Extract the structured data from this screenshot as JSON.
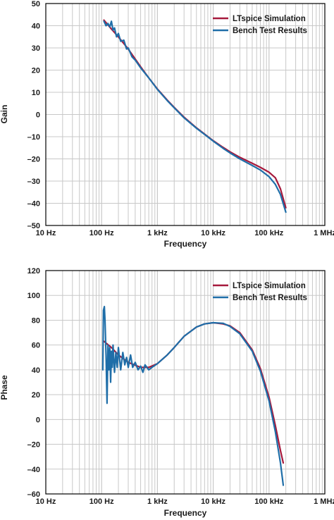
{
  "colors": {
    "ltspice": "#a6193c",
    "bench": "#1f6ea8",
    "grid": "#c8c8c8",
    "axis": "#000000",
    "text": "#1a1a1a"
  },
  "chart_data": [
    {
      "type": "line",
      "xlabel": "Frequency",
      "ylabel": "Gain",
      "x_scale": "log",
      "xlim": [
        10,
        1000000
      ],
      "ylim": [
        -50,
        50
      ],
      "x_ticks": [
        {
          "value": 10,
          "label": "10 Hz"
        },
        {
          "value": 100,
          "label": "100 Hz"
        },
        {
          "value": 1000,
          "label": "1 kHz"
        },
        {
          "value": 10000,
          "label": "10 kHz"
        },
        {
          "value": 100000,
          "label": "100 kHz"
        },
        {
          "value": 1000000,
          "label": "1 MHz"
        }
      ],
      "y_ticks": [
        50,
        40,
        30,
        20,
        10,
        0,
        -10,
        -20,
        -30,
        -40,
        -50
      ],
      "y_tick_labels": [
        "50",
        "40",
        "30",
        "20",
        "10",
        "0",
        "–10",
        "–20",
        "–30",
        "–40",
        "–50"
      ],
      "grid": true,
      "legend_position": "top-right",
      "series": [
        {
          "name": "LTspice Simulation",
          "color_key": "ltspice",
          "x": [
            110,
            150,
            200,
            300,
            500,
            700,
            1000,
            1500,
            2000,
            3000,
            5000,
            7000,
            10000,
            15000,
            20000,
            30000,
            50000,
            70000,
            100000,
            130000,
            160000,
            200000
          ],
          "y": [
            42.5,
            38.5,
            35,
            29.5,
            21.5,
            16.5,
            11.5,
            6.5,
            3.2,
            -1.2,
            -6,
            -8.8,
            -11.8,
            -14.8,
            -16.8,
            -19.3,
            -22,
            -23.8,
            -26,
            -28.5,
            -33.5,
            -42
          ]
        },
        {
          "name": "Bench Test Results",
          "color_key": "bench",
          "x": [
            110,
            120,
            130,
            140,
            150,
            160,
            170,
            185,
            200,
            220,
            250,
            280,
            300,
            350,
            400,
            500,
            700,
            1000,
            1500,
            2000,
            3000,
            5000,
            7000,
            10000,
            15000,
            20000,
            30000,
            50000,
            70000,
            100000,
            130000,
            160000,
            200000
          ],
          "y": [
            42,
            40,
            41,
            39.5,
            42,
            38,
            39,
            35,
            36.5,
            33,
            33.5,
            29.5,
            30,
            26,
            24.5,
            21,
            16.5,
            11.3,
            6.3,
            3,
            -1.5,
            -6.2,
            -9,
            -12,
            -15.2,
            -17.3,
            -20,
            -23,
            -25,
            -28,
            -31.5,
            -36,
            -44
          ]
        }
      ]
    },
    {
      "type": "line",
      "xlabel": "Frequency",
      "ylabel": "Phase",
      "x_scale": "log",
      "xlim": [
        10,
        1000000
      ],
      "ylim": [
        -60,
        120
      ],
      "x_ticks": [
        {
          "value": 10,
          "label": "10 Hz"
        },
        {
          "value": 100,
          "label": "100 Hz"
        },
        {
          "value": 1000,
          "label": "1 kHz"
        },
        {
          "value": 10000,
          "label": "10 kHz"
        },
        {
          "value": 100000,
          "label": "100 kHz"
        },
        {
          "value": 1000000,
          "label": "1 MHz"
        }
      ],
      "y_ticks": [
        120,
        100,
        80,
        60,
        40,
        20,
        0,
        -20,
        -40,
        -60
      ],
      "y_tick_labels": [
        "120",
        "100",
        "80",
        "60",
        "40",
        "20",
        "0",
        "–20",
        "–40",
        "–60"
      ],
      "grid": true,
      "legend_position": "top-right",
      "series": [
        {
          "name": "LTspice Simulation",
          "color_key": "ltspice",
          "x": [
            110,
            150,
            200,
            300,
            500,
            700,
            1000,
            1500,
            2000,
            3000,
            5000,
            7000,
            10000,
            15000,
            20000,
            30000,
            50000,
            70000,
            100000,
            130000,
            160000,
            180000
          ],
          "y": [
            63,
            58,
            52,
            46,
            42,
            42,
            45,
            52,
            58,
            67,
            74.5,
            77,
            78,
            77,
            75.5,
            70,
            56,
            41,
            18,
            -5,
            -25,
            -35
          ]
        },
        {
          "name": "Bench Test Results",
          "color_key": "bench",
          "x": [
            105,
            108,
            112,
            115,
            120,
            125,
            130,
            135,
            140,
            145,
            150,
            155,
            160,
            170,
            180,
            190,
            200,
            220,
            240,
            260,
            280,
            300,
            330,
            360,
            400,
            450,
            500,
            550,
            600,
            700,
            800,
            1000,
            1500,
            2000,
            3000,
            5000,
            7000,
            10000,
            15000,
            20000,
            30000,
            50000,
            70000,
            100000,
            130000,
            160000,
            180000
          ],
          "y": [
            40,
            88,
            91,
            80,
            52,
            13,
            60,
            40,
            58,
            30,
            55,
            42,
            60,
            38,
            54,
            42,
            58,
            40,
            54,
            44,
            50,
            42,
            52,
            42,
            46,
            40,
            43,
            38,
            44,
            40,
            42,
            45,
            52,
            58,
            67,
            74.5,
            77,
            78,
            77.5,
            75,
            69,
            55,
            39,
            15,
            -10,
            -35,
            -53
          ]
        }
      ]
    }
  ]
}
